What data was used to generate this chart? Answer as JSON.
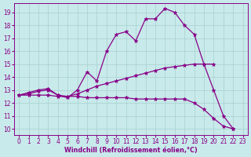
{
  "xlabel": "Windchill (Refroidissement éolien,°C)",
  "bg_color": "#c8eaea",
  "line_color": "#880088",
  "xlim": [
    -0.5,
    23.5
  ],
  "ylim": [
    9.5,
    19.7
  ],
  "xticks": [
    0,
    1,
    2,
    3,
    4,
    5,
    6,
    7,
    8,
    9,
    10,
    11,
    12,
    13,
    14,
    15,
    16,
    17,
    18,
    19,
    20,
    21,
    22,
    23
  ],
  "yticks": [
    10,
    11,
    12,
    13,
    14,
    15,
    16,
    17,
    18,
    19
  ],
  "line1_x": [
    0,
    1,
    2,
    3,
    4,
    5,
    6,
    7,
    8,
    9,
    10,
    11,
    12,
    13,
    14,
    15,
    16,
    17,
    18,
    19,
    20,
    21,
    22
  ],
  "line1_y": [
    12.6,
    12.8,
    13.0,
    13.1,
    12.6,
    12.4,
    13.0,
    14.4,
    13.7,
    16.0,
    17.3,
    17.5,
    16.8,
    18.5,
    18.5,
    19.3,
    19.0,
    18.0,
    17.3,
    15.0,
    13.0,
    11.0,
    10.0
  ],
  "line2_x": [
    0,
    1,
    2,
    3,
    4,
    5,
    6,
    7,
    8,
    9,
    10,
    11,
    12,
    13,
    14,
    15,
    16,
    17,
    18,
    19,
    20
  ],
  "line2_y": [
    12.6,
    12.7,
    12.9,
    13.0,
    12.6,
    12.5,
    12.7,
    13.0,
    13.3,
    13.5,
    13.7,
    13.9,
    14.1,
    14.3,
    14.5,
    14.7,
    14.8,
    14.9,
    15.0,
    15.0,
    15.0
  ],
  "line3_x": [
    0,
    1,
    2,
    3,
    4,
    5,
    6,
    7,
    8,
    9,
    10,
    11,
    12,
    13,
    14,
    15,
    16,
    17,
    18,
    19,
    20,
    21,
    22
  ],
  "line3_y": [
    12.6,
    12.6,
    12.6,
    12.6,
    12.5,
    12.5,
    12.5,
    12.4,
    12.4,
    12.4,
    12.4,
    12.4,
    12.3,
    12.3,
    12.3,
    12.3,
    12.3,
    12.3,
    12.0,
    11.5,
    10.8,
    10.2,
    10.0
  ],
  "grid_color": "#a8d0d0",
  "marker": "*",
  "markersize": 3.5,
  "linewidth": 0.9
}
